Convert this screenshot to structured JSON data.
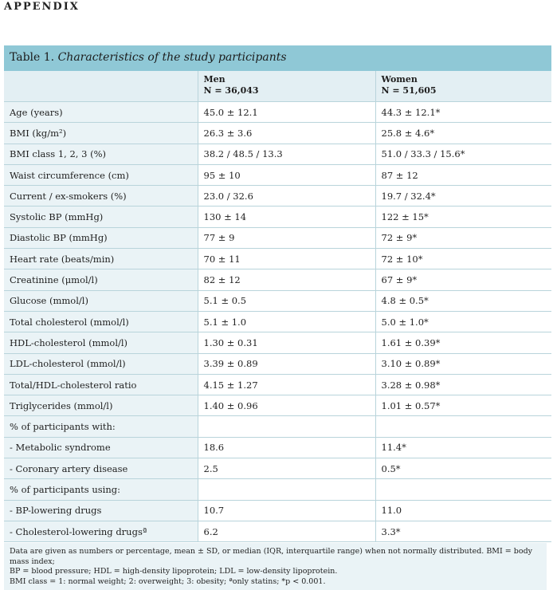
{
  "header": "APPENDIX",
  "table": {
    "label": "Table 1.",
    "title": "Characteristics of the study participants",
    "columns": [
      {
        "name": "Men",
        "n": "N = 36,043"
      },
      {
        "name": "Women",
        "n": "N = 51,605"
      }
    ],
    "rows": [
      {
        "label": "Age (years)",
        "men": "45.0 ± 12.1",
        "women": "44.3 ± 12.1*"
      },
      {
        "label": "BMI (kg/m²)",
        "men": "26.3 ± 3.6",
        "women": "25.8 ± 4.6*"
      },
      {
        "label": "BMI class 1, 2, 3 (%)",
        "men": "38.2 / 48.5 / 13.3",
        "women": "51.0 / 33.3 / 15.6*"
      },
      {
        "label": "Waist circumference (cm)",
        "men": "95 ± 10",
        "women": "87 ± 12"
      },
      {
        "label": "Current / ex-smokers (%)",
        "men": "23.0 / 32.6",
        "women": "19.7 / 32.4*"
      },
      {
        "label": "Systolic BP (mmHg)",
        "men": "130 ± 14",
        "women": "122 ± 15*"
      },
      {
        "label": "Diastolic BP (mmHg)",
        "men": "77 ± 9",
        "women": "72 ± 9*"
      },
      {
        "label": "Heart rate (beats/min)",
        "men": "70 ± 11",
        "women": "72 ± 10*"
      },
      {
        "label": "Creatinine (μmol/l)",
        "men": "82 ± 12",
        "women": "67 ± 9*"
      },
      {
        "label": "Glucose (mmol/l)",
        "men": "5.1 ± 0.5",
        "women": "4.8 ± 0.5*"
      },
      {
        "label": "Total cholesterol (mmol/l)",
        "men": "5.1 ± 1.0",
        "women": "5.0 ± 1.0*"
      },
      {
        "label": "HDL-cholesterol (mmol/l)",
        "men": "1.30 ± 0.31",
        "women": "1.61 ± 0.39*"
      },
      {
        "label": "LDL-cholesterol (mmol/l)",
        "men": "3.39 ± 0.89",
        "women": "3.10 ± 0.89*"
      },
      {
        "label": "Total/HDL-cholesterol ratio",
        "men": "4.15 ± 1.27",
        "women": "3.28 ± 0.98*"
      },
      {
        "label": "Triglycerides (mmol/l)",
        "men": "1.40 ± 0.96",
        "women": "1.01 ± 0.57*"
      },
      {
        "label": "% of participants with:",
        "men": "",
        "women": ""
      },
      {
        "label": "- Metabolic syndrome",
        "men": "18.6",
        "women": "11.4*"
      },
      {
        "label": "- Coronary artery disease",
        "men": "2.5",
        "women": "0.5*"
      },
      {
        "label": "% of participants using:",
        "men": "",
        "women": ""
      },
      {
        "label": "- BP-lowering drugs",
        "men": "10.7",
        "women": "11.0"
      },
      {
        "label": "- Cholesterol-lowering drugsª",
        "men": "6.2",
        "women": "3.3*"
      }
    ],
    "footnote": [
      "Data are given as numbers or percentage, mean ± SD, or median (IQR, interquartile range) when not normally distributed. BMI = body mass index;",
      "BP = blood pressure; HDL = high-density lipoprotein; LDL = low-density lipoprotein.",
      "BMI class = 1: normal weight; 2: overweight; 3: obesity; ªonly statins; *p < 0.001."
    ]
  }
}
